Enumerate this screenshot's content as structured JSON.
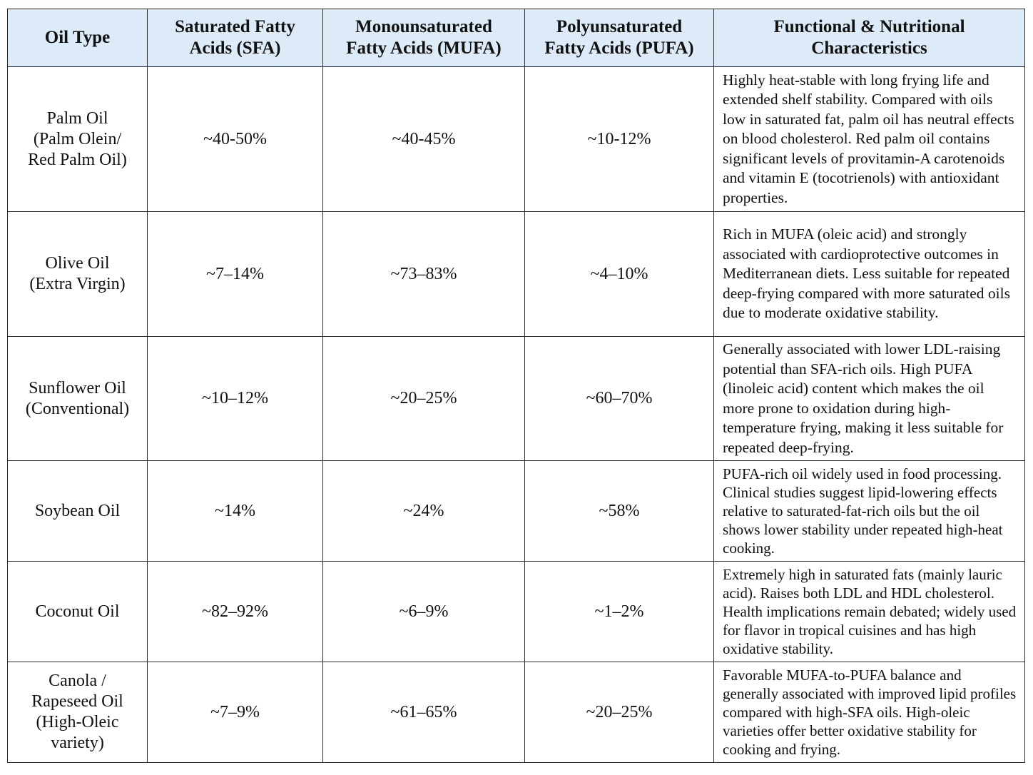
{
  "headers": {
    "oil_type": "Oil Type",
    "sfa": "Saturated Fatty\nAcids (SFA)",
    "mufa": "Monounsaturated\nFatty Acids (MUFA)",
    "pufa": "Polyunsaturated\nFatty Acids (PUFA)",
    "characteristics": "Functional & Nutritional\nCharacteristics"
  },
  "rows": [
    {
      "name": "Palm Oil\n(Palm Olein/\nRed Palm Oil)",
      "sfa": "~40-50%",
      "mufa": "~40-45%",
      "pufa": "~10-12%",
      "characteristics": "Highly heat-stable with long frying life and extended shelf stability. Compared with oils low in saturated fat, palm oil has neutral effects on blood cholesterol. Red palm oil contains significant levels of provitamin-A carotenoids and vitamin E (tocotrienols) with antioxidant properties."
    },
    {
      "name": "Olive Oil\n(Extra Virgin)",
      "sfa": "~7–14%",
      "mufa": "~73–83%",
      "pufa": "~4–10%",
      "characteristics": "Rich in MUFA (oleic acid) and strongly associated with cardioprotective outcomes in Mediterranean diets. Less suitable for repeated deep-frying compared with more saturated oils due to moderate oxidative stability."
    },
    {
      "name": "Sunflower Oil\n(Conventional)",
      "sfa": "~10–12%",
      "mufa": "~20–25%",
      "pufa": "~60–70%",
      "characteristics": "Generally associated with lower LDL-raising potential than SFA-rich oils. High PUFA (linoleic acid) content which makes the oil more prone to oxidation during high-temperature frying, making it less suitable for repeated deep-frying."
    },
    {
      "name": "Soybean Oil",
      "sfa": "~14%",
      "mufa": "~24%",
      "pufa": "~58%",
      "characteristics": "PUFA-rich oil widely used in food processing. Clinical studies suggest lipid-lowering effects relative to saturated-fat-rich oils but the oil shows lower stability under repeated high-heat cooking."
    },
    {
      "name": "Coconut Oil",
      "sfa": "~82–92%",
      "mufa": "~6–9%",
      "pufa": "~1–2%",
      "characteristics": "Extremely high in saturated fats (mainly lauric acid). Raises both LDL and HDL cholesterol. Health implications remain debated; widely used for flavor in tropical cuisines and has high oxidative stability."
    },
    {
      "name": "Canola /\nRapeseed Oil\n(High-Oleic\nvariety)",
      "sfa": "~7–9%",
      "mufa": "~61–65%",
      "pufa": "~20–25%",
      "characteristics": "Favorable MUFA-to-PUFA balance and generally associated with improved lipid profiles compared with high-SFA oils. High-oleic varieties offer better oxidative stability for cooking and frying."
    }
  ]
}
